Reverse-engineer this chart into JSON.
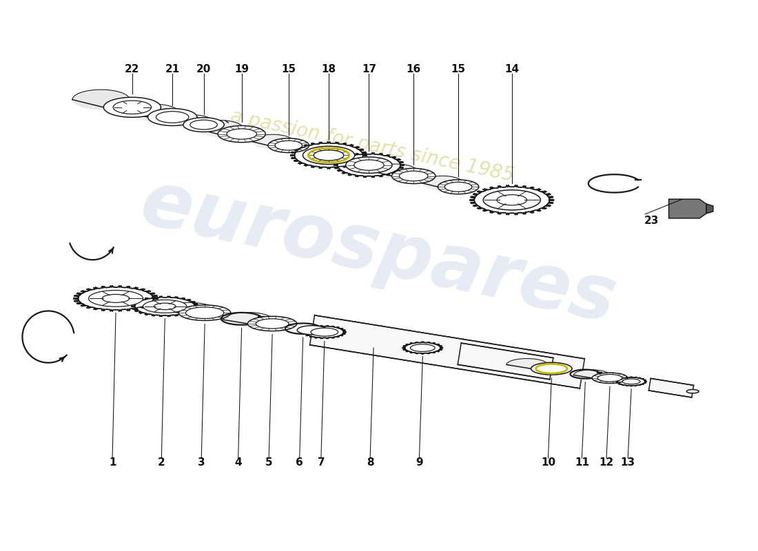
{
  "background_color": "#ffffff",
  "watermark_text1": "eurospares",
  "watermark_text2": "a passion for parts since 1985",
  "watermark_color": "#c8d4e8",
  "watermark_color2": "#d8d890",
  "line_color": "#1a1a1a",
  "label_fontsize": 11,
  "label_fontweight": "bold",
  "top_labels": [
    "1",
    "2",
    "3",
    "4",
    "5",
    "6",
    "7",
    "8",
    "9",
    "10",
    "11",
    "12",
    "13"
  ],
  "bot_labels": [
    "22",
    "21",
    "20",
    "19",
    "15",
    "18",
    "17",
    "16",
    "15",
    "14"
  ],
  "label23": "23",
  "yellow_color": "#c8b800"
}
